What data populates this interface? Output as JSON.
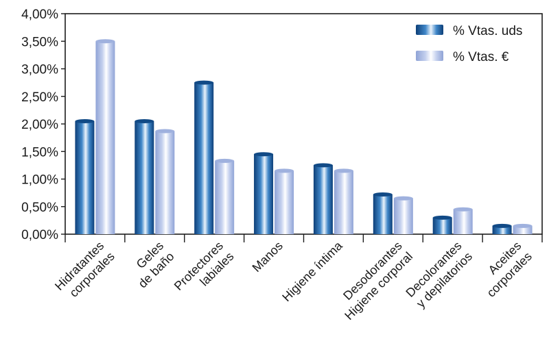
{
  "chart_data": {
    "type": "bar",
    "categories": [
      [
        "Hidratantes",
        "corporales"
      ],
      [
        "Geles",
        "de baño"
      ],
      [
        "Protectores",
        "labiales"
      ],
      [
        "Manos"
      ],
      [
        "Higiene íntima"
      ],
      [
        "Desodorantes",
        "Higiene corporal"
      ],
      [
        "Decolorantes",
        "y depilatorios"
      ],
      [
        "Aceites",
        "corporales"
      ]
    ],
    "series": [
      {
        "name": "% Vtas. uds",
        "values": [
          2.05,
          2.05,
          2.75,
          1.45,
          1.25,
          0.72,
          0.3,
          0.15
        ],
        "color": "#1f5fa0"
      },
      {
        "name": "% Vtas. €",
        "values": [
          3.5,
          1.87,
          1.33,
          1.15,
          1.15,
          0.65,
          0.45,
          0.15
        ],
        "color": "#b4c3e6"
      }
    ],
    "yticks": [
      "0,00%",
      "0,50%",
      "1,00%",
      "1,50%",
      "2,00%",
      "2,50%",
      "3,00%",
      "3,50%",
      "4,00%"
    ],
    "ylim": [
      0,
      4
    ],
    "title": "",
    "xlabel": "",
    "ylabel": "",
    "legend_position": "top-right",
    "grid": false
  }
}
